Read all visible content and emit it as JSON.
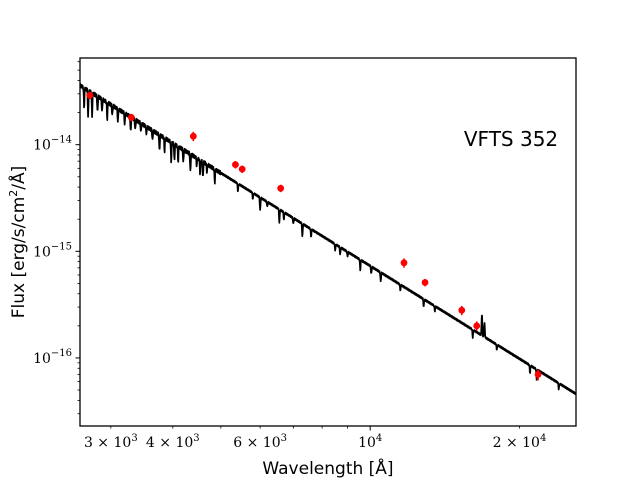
{
  "chart_data": {
    "type": "line",
    "title": "",
    "annotation": "VFTS 352",
    "xlabel": "Wavelength [Å]",
    "ylabel_parts": {
      "before": "Flux [erg/s/cm",
      "exp": "2",
      "after": "/Å]"
    },
    "xscale": "log",
    "yscale": "log",
    "xlim": [
      2600,
      26000
    ],
    "ylim": [
      2.3e-17,
      6.5e-14
    ],
    "x_ticks": [
      {
        "value": 3000,
        "base": "3 × 10",
        "exp": "3"
      },
      {
        "value": 4000,
        "base": "4 × 10",
        "exp": "3"
      },
      {
        "value": 6000,
        "base": "6 × 10",
        "exp": "3"
      },
      {
        "value": 10000,
        "base": "10",
        "exp": "4"
      },
      {
        "value": 20000,
        "base": "2 × 10",
        "exp": "4"
      }
    ],
    "y_ticks": [
      {
        "value": 1e-14,
        "base": "10",
        "exp": "−14"
      },
      {
        "value": 1e-15,
        "base": "10",
        "exp": "−15"
      },
      {
        "value": 1e-16,
        "base": "10",
        "exp": "−16"
      }
    ],
    "series": [
      {
        "name": "model spectrum",
        "color": "#000000",
        "continuum": {
          "x": [
            2600,
            26000
          ],
          "y": [
            3.6e-14,
            4.6e-17
          ]
        },
        "absorption_lines": [
          {
            "x": 2650,
            "depth": 0.65
          },
          {
            "x": 2700,
            "depth": 0.55
          },
          {
            "x": 2750,
            "depth": 0.6
          },
          {
            "x": 2820,
            "depth": 0.7
          },
          {
            "x": 2880,
            "depth": 0.75
          },
          {
            "x": 2950,
            "depth": 0.7
          },
          {
            "x": 3020,
            "depth": 0.8
          },
          {
            "x": 3100,
            "depth": 0.75
          },
          {
            "x": 3200,
            "depth": 0.78
          },
          {
            "x": 3290,
            "depth": 0.72
          },
          {
            "x": 3360,
            "depth": 0.8
          },
          {
            "x": 3450,
            "depth": 0.82
          },
          {
            "x": 3540,
            "depth": 0.85
          },
          {
            "x": 3640,
            "depth": 0.8
          },
          {
            "x": 3760,
            "depth": 0.7
          },
          {
            "x": 3850,
            "depth": 0.75
          },
          {
            "x": 3970,
            "depth": 0.65
          },
          {
            "x": 4030,
            "depth": 0.7
          },
          {
            "x": 4100,
            "depth": 0.72
          },
          {
            "x": 4200,
            "depth": 0.75
          },
          {
            "x": 4340,
            "depth": 0.68
          },
          {
            "x": 4470,
            "depth": 0.85
          },
          {
            "x": 4540,
            "depth": 0.75
          },
          {
            "x": 4600,
            "depth": 0.7
          },
          {
            "x": 4686,
            "depth": 0.85
          },
          {
            "x": 4860,
            "depth": 0.75
          },
          {
            "x": 5412,
            "depth": 0.85
          },
          {
            "x": 5800,
            "depth": 0.88
          },
          {
            "x": 6000,
            "depth": 0.75
          },
          {
            "x": 6200,
            "depth": 0.9
          },
          {
            "x": 6560,
            "depth": 0.75
          },
          {
            "x": 6700,
            "depth": 0.85
          },
          {
            "x": 7000,
            "depth": 0.88
          },
          {
            "x": 7300,
            "depth": 0.75
          },
          {
            "x": 7600,
            "depth": 0.85
          },
          {
            "x": 8500,
            "depth": 0.88
          },
          {
            "x": 8700,
            "depth": 0.85
          },
          {
            "x": 9000,
            "depth": 0.9
          },
          {
            "x": 9550,
            "depth": 0.8
          },
          {
            "x": 10050,
            "depth": 0.85
          },
          {
            "x": 10500,
            "depth": 0.82
          },
          {
            "x": 11500,
            "depth": 0.88
          },
          {
            "x": 12820,
            "depth": 0.85
          },
          {
            "x": 13500,
            "depth": 0.9
          },
          {
            "x": 16100,
            "depth": 0.85
          },
          {
            "x": 18000,
            "depth": 0.9
          },
          {
            "x": 21000,
            "depth": 0.85
          },
          {
            "x": 21660,
            "depth": 0.8
          },
          {
            "x": 24000,
            "depth": 0.88
          }
        ],
        "emission_features": [
          {
            "x": 16800,
            "height": 1.6
          },
          {
            "x": 17000,
            "height": 1.35
          }
        ]
      },
      {
        "name": "photometry",
        "color": "#ff0000",
        "x": [
          2720,
          3300,
          4400,
          5350,
          5520,
          6600,
          11700,
          12900,
          15300,
          16400,
          21800
        ],
        "y": [
          2.9e-14,
          1.8e-14,
          1.2e-14,
          6.5e-15,
          5.9e-15,
          3.9e-15,
          7.8e-16,
          5.1e-16,
          2.8e-16,
          2e-16,
          7e-17
        ],
        "yerr_frac": [
          0.08,
          0.08,
          0.1,
          0.08,
          0.08,
          0.08,
          0.1,
          0.08,
          0.1,
          0.1,
          0.12
        ]
      }
    ]
  }
}
